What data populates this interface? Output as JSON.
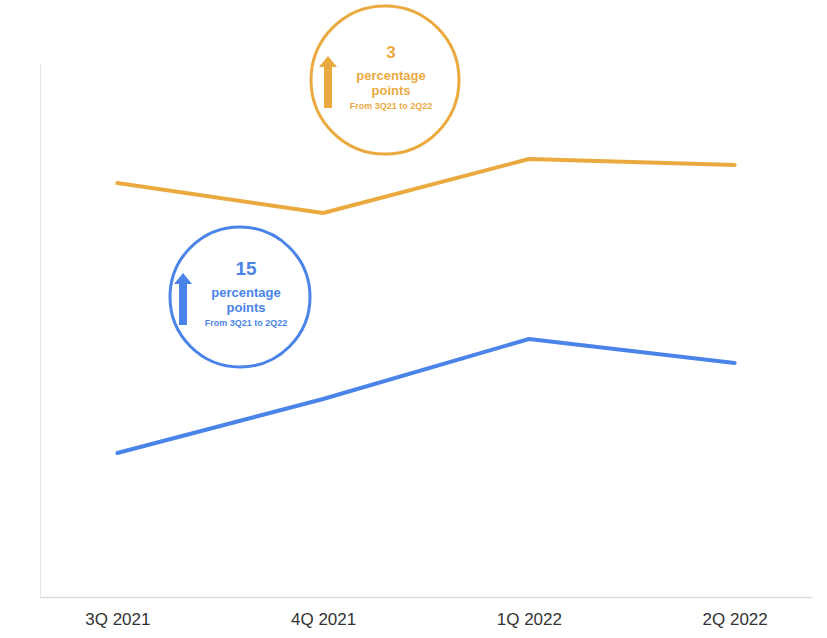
{
  "chart_data": {
    "type": "line",
    "categories": [
      "3Q 2021",
      "4Q 2021",
      "1Q 2022",
      "2Q 2022"
    ],
    "series": [
      {
        "color": "#ebaa3f",
        "values": [
          75,
          70,
          79,
          78
        ]
      },
      {
        "color": "#4a84e8",
        "values": [
          30,
          39,
          49,
          45
        ]
      }
    ],
    "ylim": [
      6,
      95
    ],
    "tick_labels": "x",
    "grid": false,
    "marker": "none",
    "annotations": [
      {
        "text": "3",
        "label": "percentage points",
        "note": "From 3Q21 to 2Q22"
      },
      {
        "text": "15",
        "label": "percentage points",
        "note": "From 3Q21 to 2Q22"
      }
    ]
  }
}
